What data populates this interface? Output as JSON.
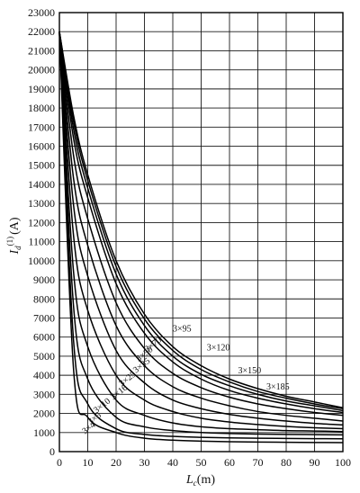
{
  "chart_data": {
    "type": "line",
    "xlabel": {
      "main": "L",
      "sub": "c",
      "unit": "(m)"
    },
    "ylabel": {
      "main": "I",
      "sub": "d",
      "sup": "(1)",
      "unit": "(A)"
    },
    "xlim": [
      0,
      100
    ],
    "ylim": [
      0,
      23000
    ],
    "x_ticks": [
      "0",
      "10",
      "20",
      "30",
      "40",
      "50",
      "60",
      "70",
      "80",
      "90",
      "100"
    ],
    "y_ticks": [
      "0",
      "1000",
      "2000",
      "3000",
      "4000",
      "5000",
      "6000",
      "7000",
      "8000",
      "9000",
      "10000",
      "11000",
      "12000",
      "13000",
      "14000",
      "15000",
      "16000",
      "17000",
      "18000",
      "19000",
      "20000",
      "21000",
      "22000",
      "23000"
    ],
    "grid": true,
    "x": [
      0,
      5,
      10,
      20,
      30,
      40,
      50,
      60,
      70,
      80,
      90,
      100
    ],
    "series": [
      {
        "name": "3×4",
        "values": [
          22000,
          4300,
          1800,
          1000,
          700,
          600,
          550,
          520,
          500,
          490,
          480,
          470
        ]
      },
      {
        "name": "3×6",
        "values": [
          22000,
          5800,
          2500,
          1200,
          900,
          800,
          750,
          720,
          700,
          690,
          680,
          670
        ]
      },
      {
        "name": "3×10",
        "values": [
          22000,
          7600,
          3800,
          1800,
          1300,
          1100,
          1000,
          950,
          920,
          900,
          890,
          880
        ]
      },
      {
        "name": "3×16",
        "values": [
          22000,
          9400,
          5500,
          2700,
          1900,
          1500,
          1300,
          1200,
          1150,
          1100,
          1080,
          1050
        ]
      },
      {
        "name": "3×25",
        "values": [
          22000,
          11300,
          7400,
          4000,
          2700,
          2100,
          1750,
          1550,
          1420,
          1320,
          1250,
          1200
        ]
      },
      {
        "name": "3×35",
        "values": [
          22000,
          12900,
          9200,
          5300,
          3600,
          2700,
          2250,
          1950,
          1750,
          1600,
          1480,
          1400
        ]
      },
      {
        "name": "3×50",
        "values": [
          22000,
          14300,
          10800,
          6600,
          4500,
          3400,
          2800,
          2400,
          2100,
          1900,
          1750,
          1600
        ]
      },
      {
        "name": "3×70",
        "values": [
          22000,
          15500,
          12200,
          7800,
          5400,
          4100,
          3350,
          2850,
          2500,
          2250,
          2050,
          1900
        ]
      },
      {
        "name": "3×95",
        "values": [
          22000,
          16400,
          13300,
          8800,
          6200,
          4700,
          3800,
          3200,
          2800,
          2500,
          2250,
          2050
        ]
      },
      {
        "name": "3×120",
        "values": [
          22000,
          16900,
          13800,
          9300,
          6600,
          5000,
          4050,
          3450,
          3000,
          2650,
          2400,
          2150
        ]
      },
      {
        "name": "3×150",
        "values": [
          22000,
          17300,
          14200,
          9700,
          6950,
          5300,
          4300,
          3650,
          3150,
          2800,
          2500,
          2250
        ]
      },
      {
        "name": "3×185",
        "values": [
          22000,
          17600,
          14500,
          10000,
          7200,
          5500,
          4500,
          3800,
          3300,
          2900,
          2600,
          2300
        ]
      }
    ],
    "labels": [
      {
        "text": "3×95",
        "x": 40,
        "y": 6300
      },
      {
        "text": "3×120",
        "x": 52,
        "y": 5300
      },
      {
        "text": "3×150",
        "x": 63,
        "y": 4100
      },
      {
        "text": "3×185",
        "x": 73,
        "y": 3250
      },
      {
        "text": "3×70",
        "x": 31,
        "y": 5200
      },
      {
        "text": "3×50",
        "x": 28,
        "y": 4700
      },
      {
        "text": "3×35",
        "x": 27,
        "y": 4100
      },
      {
        "text": "3×25",
        "x": 22,
        "y": 3400
      },
      {
        "text": "3×16",
        "x": 19,
        "y": 2700
      },
      {
        "text": "3×10",
        "x": 13,
        "y": 2000
      },
      {
        "text": "3×6",
        "x": 11,
        "y": 1400
      },
      {
        "text": "3×4",
        "x": 9,
        "y": 900
      }
    ]
  }
}
